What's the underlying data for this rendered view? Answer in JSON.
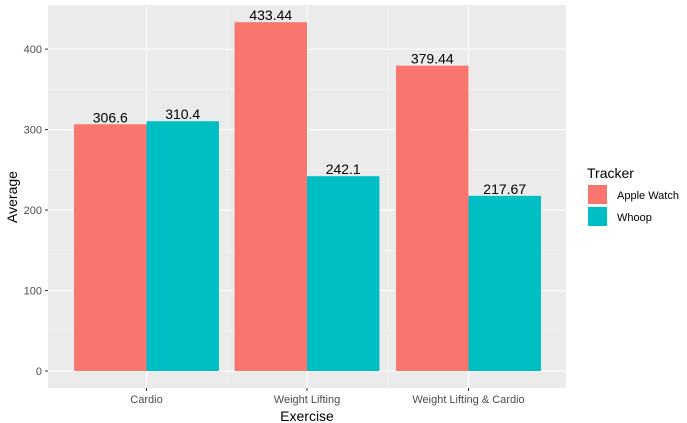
{
  "chart_data": {
    "type": "bar",
    "title": "",
    "xlabel": "Exercise",
    "ylabel": "Average",
    "categories": [
      "Cardio",
      "Weight Lifting",
      "Weight Lifting & Cardio"
    ],
    "series": [
      {
        "name": "Apple Watch",
        "color": "#F8766D",
        "values": [
          306.6,
          433.44,
          379.44
        ],
        "labels": [
          "306.6",
          "433.44",
          "379.44"
        ]
      },
      {
        "name": "Whoop",
        "color": "#00BFC4",
        "values": [
          310.4,
          242.1,
          217.67
        ],
        "labels": [
          "310.4",
          "242.1",
          "217.67"
        ]
      }
    ],
    "ylim": [
      0,
      455
    ],
    "yticks": [
      0,
      100,
      200,
      300,
      400
    ],
    "ytick_labels": [
      "0",
      "100",
      "200",
      "300",
      "400"
    ],
    "grid": true,
    "panel_background": "#EBEBEB",
    "grid_color": "#FFFFFF",
    "legend": {
      "title": "Tracker",
      "position": "right"
    }
  }
}
